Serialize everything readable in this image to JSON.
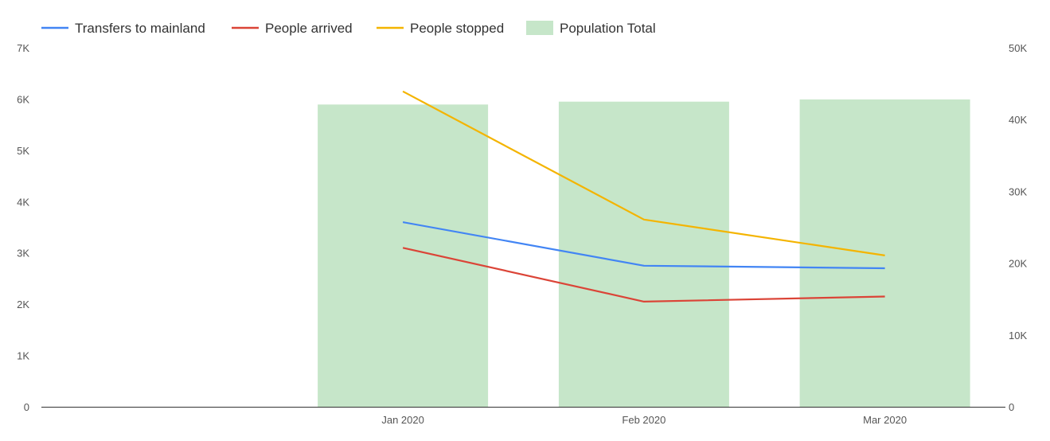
{
  "chart_data": {
    "type": "bar",
    "title": "",
    "categories": [
      "Jan 2020",
      "Feb 2020",
      "Mar 2020"
    ],
    "x_domain": [
      "",
      "Jan 2020",
      "Feb 2020",
      "Mar 2020"
    ],
    "left_axis": {
      "ylim": [
        0,
        7000
      ],
      "ticks": [
        0,
        1000,
        2000,
        3000,
        4000,
        5000,
        6000,
        7000
      ],
      "tick_labels": [
        "0",
        "1K",
        "2K",
        "3K",
        "4K",
        "5K",
        "6K",
        "7K"
      ]
    },
    "right_axis": {
      "ylim": [
        0,
        50000
      ],
      "ticks": [
        0,
        10000,
        20000,
        30000,
        40000,
        50000
      ],
      "tick_labels": [
        "0",
        "10K",
        "20K",
        "30K",
        "40K",
        "50K"
      ]
    },
    "legend_position": "top-left",
    "grid": false,
    "series": [
      {
        "name": "Transfers to mainland",
        "type": "line",
        "axis": "left",
        "color": "#4285F4",
        "values": [
          3600,
          2750,
          2700
        ]
      },
      {
        "name": "People arrived",
        "type": "line",
        "axis": "left",
        "color": "#DB4437",
        "values": [
          3100,
          2050,
          2150
        ]
      },
      {
        "name": "People stopped",
        "type": "line",
        "axis": "left",
        "color": "#F4B400",
        "values": [
          6150,
          3650,
          2950
        ]
      },
      {
        "name": "Population Total",
        "type": "bar",
        "axis": "right",
        "color": "#C6E6C9",
        "values": [
          42100,
          42500,
          42800
        ]
      }
    ]
  }
}
